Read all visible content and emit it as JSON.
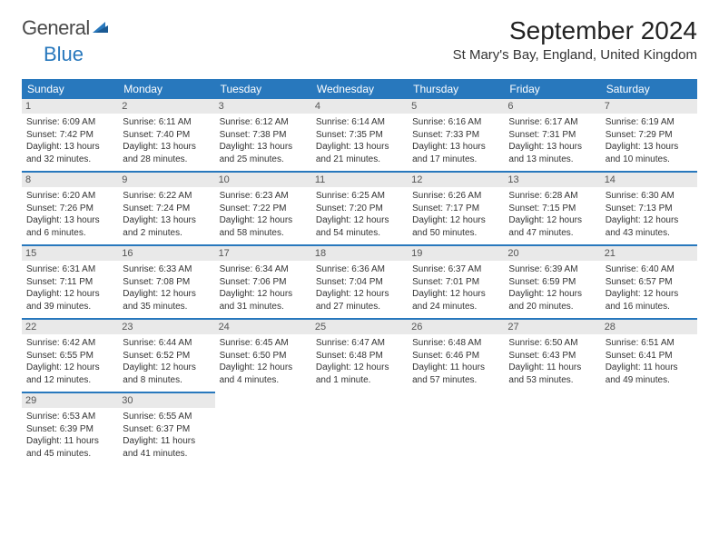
{
  "logo": {
    "text1": "General",
    "text2": "Blue"
  },
  "title": "September 2024",
  "location": "St Mary's Bay, England, United Kingdom",
  "colors": {
    "header_bg": "#2878bd",
    "header_text": "#ffffff",
    "daynum_bg": "#e9e9e9",
    "border": "#2878bd",
    "text": "#333333"
  },
  "weekdays": [
    "Sunday",
    "Monday",
    "Tuesday",
    "Wednesday",
    "Thursday",
    "Friday",
    "Saturday"
  ],
  "days": [
    {
      "n": "1",
      "sr": "6:09 AM",
      "ss": "7:42 PM",
      "dl": "13 hours and 32 minutes."
    },
    {
      "n": "2",
      "sr": "6:11 AM",
      "ss": "7:40 PM",
      "dl": "13 hours and 28 minutes."
    },
    {
      "n": "3",
      "sr": "6:12 AM",
      "ss": "7:38 PM",
      "dl": "13 hours and 25 minutes."
    },
    {
      "n": "4",
      "sr": "6:14 AM",
      "ss": "7:35 PM",
      "dl": "13 hours and 21 minutes."
    },
    {
      "n": "5",
      "sr": "6:16 AM",
      "ss": "7:33 PM",
      "dl": "13 hours and 17 minutes."
    },
    {
      "n": "6",
      "sr": "6:17 AM",
      "ss": "7:31 PM",
      "dl": "13 hours and 13 minutes."
    },
    {
      "n": "7",
      "sr": "6:19 AM",
      "ss": "7:29 PM",
      "dl": "13 hours and 10 minutes."
    },
    {
      "n": "8",
      "sr": "6:20 AM",
      "ss": "7:26 PM",
      "dl": "13 hours and 6 minutes."
    },
    {
      "n": "9",
      "sr": "6:22 AM",
      "ss": "7:24 PM",
      "dl": "13 hours and 2 minutes."
    },
    {
      "n": "10",
      "sr": "6:23 AM",
      "ss": "7:22 PM",
      "dl": "12 hours and 58 minutes."
    },
    {
      "n": "11",
      "sr": "6:25 AM",
      "ss": "7:20 PM",
      "dl": "12 hours and 54 minutes."
    },
    {
      "n": "12",
      "sr": "6:26 AM",
      "ss": "7:17 PM",
      "dl": "12 hours and 50 minutes."
    },
    {
      "n": "13",
      "sr": "6:28 AM",
      "ss": "7:15 PM",
      "dl": "12 hours and 47 minutes."
    },
    {
      "n": "14",
      "sr": "6:30 AM",
      "ss": "7:13 PM",
      "dl": "12 hours and 43 minutes."
    },
    {
      "n": "15",
      "sr": "6:31 AM",
      "ss": "7:11 PM",
      "dl": "12 hours and 39 minutes."
    },
    {
      "n": "16",
      "sr": "6:33 AM",
      "ss": "7:08 PM",
      "dl": "12 hours and 35 minutes."
    },
    {
      "n": "17",
      "sr": "6:34 AM",
      "ss": "7:06 PM",
      "dl": "12 hours and 31 minutes."
    },
    {
      "n": "18",
      "sr": "6:36 AM",
      "ss": "7:04 PM",
      "dl": "12 hours and 27 minutes."
    },
    {
      "n": "19",
      "sr": "6:37 AM",
      "ss": "7:01 PM",
      "dl": "12 hours and 24 minutes."
    },
    {
      "n": "20",
      "sr": "6:39 AM",
      "ss": "6:59 PM",
      "dl": "12 hours and 20 minutes."
    },
    {
      "n": "21",
      "sr": "6:40 AM",
      "ss": "6:57 PM",
      "dl": "12 hours and 16 minutes."
    },
    {
      "n": "22",
      "sr": "6:42 AM",
      "ss": "6:55 PM",
      "dl": "12 hours and 12 minutes."
    },
    {
      "n": "23",
      "sr": "6:44 AM",
      "ss": "6:52 PM",
      "dl": "12 hours and 8 minutes."
    },
    {
      "n": "24",
      "sr": "6:45 AM",
      "ss": "6:50 PM",
      "dl": "12 hours and 4 minutes."
    },
    {
      "n": "25",
      "sr": "6:47 AM",
      "ss": "6:48 PM",
      "dl": "12 hours and 1 minute."
    },
    {
      "n": "26",
      "sr": "6:48 AM",
      "ss": "6:46 PM",
      "dl": "11 hours and 57 minutes."
    },
    {
      "n": "27",
      "sr": "6:50 AM",
      "ss": "6:43 PM",
      "dl": "11 hours and 53 minutes."
    },
    {
      "n": "28",
      "sr": "6:51 AM",
      "ss": "6:41 PM",
      "dl": "11 hours and 49 minutes."
    },
    {
      "n": "29",
      "sr": "6:53 AM",
      "ss": "6:39 PM",
      "dl": "11 hours and 45 minutes."
    },
    {
      "n": "30",
      "sr": "6:55 AM",
      "ss": "6:37 PM",
      "dl": "11 hours and 41 minutes."
    }
  ],
  "labels": {
    "sunrise": "Sunrise:",
    "sunset": "Sunset:",
    "daylight": "Daylight:"
  }
}
